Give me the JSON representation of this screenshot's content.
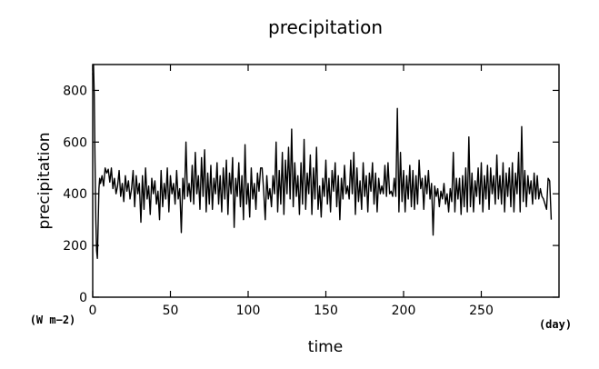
{
  "chart_data": {
    "type": "line",
    "title": "precipitation",
    "xlabel": "time",
    "ylabel": "precipitation",
    "x_unit": "(day)",
    "y_unit": "(W m−2)",
    "xlim": [
      0,
      300
    ],
    "ylim": [
      0,
      900
    ],
    "xticks": [
      0,
      50,
      100,
      150,
      200,
      250
    ],
    "yticks": [
      0,
      200,
      400,
      600,
      800
    ],
    "grid": false,
    "series": [
      {
        "values": [
          [
            0.0,
            860
          ],
          [
            0.5,
            900
          ],
          [
            1.0,
            780
          ],
          [
            1.5,
            520
          ],
          [
            2.0,
            300
          ],
          [
            2.5,
            180
          ],
          [
            3.0,
            150
          ],
          [
            3.5,
            280
          ],
          [
            4.0,
            420
          ],
          [
            4.5,
            460
          ],
          [
            5.0,
            440
          ],
          [
            6.0,
            470
          ],
          [
            7.0,
            430
          ],
          [
            8.0,
            500
          ],
          [
            9.0,
            480
          ],
          [
            10.0,
            495
          ],
          [
            11.0,
            445
          ],
          [
            12.0,
            500
          ],
          [
            13.0,
            420
          ],
          [
            14.0,
            460
          ],
          [
            15.0,
            400
          ],
          [
            16.0,
            430
          ],
          [
            17.0,
            490
          ],
          [
            18.0,
            390
          ],
          [
            19.0,
            440
          ],
          [
            20.0,
            370
          ],
          [
            21.0,
            470
          ],
          [
            22.0,
            410
          ],
          [
            23.0,
            450
          ],
          [
            24.0,
            380
          ],
          [
            25.0,
            420
          ],
          [
            26.0,
            490
          ],
          [
            27.0,
            350
          ],
          [
            28.0,
            470
          ],
          [
            29.0,
            400
          ],
          [
            30.0,
            440
          ],
          [
            31.0,
            290
          ],
          [
            32.0,
            470
          ],
          [
            33.0,
            340
          ],
          [
            34.0,
            500
          ],
          [
            35.0,
            380
          ],
          [
            36.0,
            430
          ],
          [
            37.0,
            320
          ],
          [
            38.0,
            460
          ],
          [
            39.0,
            400
          ],
          [
            40.0,
            450
          ],
          [
            41.0,
            360
          ],
          [
            42.0,
            410
          ],
          [
            43.0,
            300
          ],
          [
            44.0,
            490
          ],
          [
            45.0,
            350
          ],
          [
            46.0,
            440
          ],
          [
            47.0,
            380
          ],
          [
            48.0,
            500
          ],
          [
            49.0,
            330
          ],
          [
            50.0,
            470
          ],
          [
            51.0,
            400
          ],
          [
            52.0,
            440
          ],
          [
            53.0,
            360
          ],
          [
            54.0,
            490
          ],
          [
            55.0,
            380
          ],
          [
            56.0,
            420
          ],
          [
            57.0,
            250
          ],
          [
            58.0,
            460
          ],
          [
            59.0,
            380
          ],
          [
            60.0,
            600
          ],
          [
            61.0,
            390
          ],
          [
            62.0,
            440
          ],
          [
            63.0,
            370
          ],
          [
            64.0,
            510
          ],
          [
            65.0,
            360
          ],
          [
            66.0,
            560
          ],
          [
            67.0,
            400
          ],
          [
            68.0,
            470
          ],
          [
            69.0,
            340
          ],
          [
            70.0,
            540
          ],
          [
            71.0,
            390
          ],
          [
            72.0,
            570
          ],
          [
            73.0,
            330
          ],
          [
            74.0,
            480
          ],
          [
            75.0,
            360
          ],
          [
            76.0,
            510
          ],
          [
            77.0,
            340
          ],
          [
            78.0,
            460
          ],
          [
            79.0,
            400
          ],
          [
            80.0,
            520
          ],
          [
            81.0,
            360
          ],
          [
            82.0,
            470
          ],
          [
            83.0,
            330
          ],
          [
            84.0,
            500
          ],
          [
            85.0,
            380
          ],
          [
            86.0,
            530
          ],
          [
            87.0,
            320
          ],
          [
            88.0,
            480
          ],
          [
            89.0,
            400
          ],
          [
            90.0,
            540
          ],
          [
            91.0,
            270
          ],
          [
            92.0,
            460
          ],
          [
            93.0,
            390
          ],
          [
            94.0,
            520
          ],
          [
            95.0,
            350
          ],
          [
            96.0,
            470
          ],
          [
            97.0,
            300
          ],
          [
            98.0,
            590
          ],
          [
            99.0,
            360
          ],
          [
            100.0,
            440
          ],
          [
            101.0,
            310
          ],
          [
            102.0,
            500
          ],
          [
            103.0,
            380
          ],
          [
            104.0,
            440
          ],
          [
            105.0,
            340
          ],
          [
            106.0,
            480
          ],
          [
            107.0,
            410
          ],
          [
            108.0,
            500
          ],
          [
            109.0,
            500
          ],
          [
            110.0,
            410
          ],
          [
            111.0,
            300
          ],
          [
            112.0,
            470
          ],
          [
            113.0,
            380
          ],
          [
            114.0,
            420
          ],
          [
            115.0,
            350
          ],
          [
            116.0,
            470
          ],
          [
            117.0,
            400
          ],
          [
            118.0,
            600
          ],
          [
            119.0,
            330
          ],
          [
            120.0,
            490
          ],
          [
            121.0,
            360
          ],
          [
            122.0,
            560
          ],
          [
            123.0,
            320
          ],
          [
            124.0,
            530
          ],
          [
            125.0,
            400
          ],
          [
            126.0,
            580
          ],
          [
            127.0,
            380
          ],
          [
            128.0,
            650
          ],
          [
            129.0,
            350
          ],
          [
            130.0,
            520
          ],
          [
            131.0,
            390
          ],
          [
            132.0,
            470
          ],
          [
            133.0,
            320
          ],
          [
            134.0,
            520
          ],
          [
            135.0,
            360
          ],
          [
            136.0,
            610
          ],
          [
            137.0,
            340
          ],
          [
            138.0,
            480
          ],
          [
            139.0,
            400
          ],
          [
            140.0,
            550
          ],
          [
            141.0,
            320
          ],
          [
            142.0,
            500
          ],
          [
            143.0,
            380
          ],
          [
            144.0,
            580
          ],
          [
            145.0,
            340
          ],
          [
            146.0,
            430
          ],
          [
            147.0,
            310
          ],
          [
            148.0,
            460
          ],
          [
            149.0,
            390
          ],
          [
            150.0,
            530
          ],
          [
            151.0,
            360
          ],
          [
            152.0,
            460
          ],
          [
            153.0,
            330
          ],
          [
            154.0,
            490
          ],
          [
            155.0,
            410
          ],
          [
            156.0,
            520
          ],
          [
            157.0,
            350
          ],
          [
            158.0,
            470
          ],
          [
            159.0,
            300
          ],
          [
            160.0,
            460
          ],
          [
            161.0,
            380
          ],
          [
            162.0,
            510
          ],
          [
            163.0,
            400
          ],
          [
            164.0,
            430
          ],
          [
            165.0,
            380
          ],
          [
            166.0,
            530
          ],
          [
            167.0,
            400
          ],
          [
            168.0,
            560
          ],
          [
            169.0,
            320
          ],
          [
            170.0,
            500
          ],
          [
            171.0,
            370
          ],
          [
            172.0,
            450
          ],
          [
            173.0,
            340
          ],
          [
            174.0,
            520
          ],
          [
            175.0,
            390
          ],
          [
            176.0,
            470
          ],
          [
            177.0,
            330
          ],
          [
            178.0,
            480
          ],
          [
            179.0,
            410
          ],
          [
            180.0,
            520
          ],
          [
            181.0,
            360
          ],
          [
            182.0,
            480
          ],
          [
            183.0,
            330
          ],
          [
            184.0,
            460
          ],
          [
            185.0,
            400
          ],
          [
            186.0,
            430
          ],
          [
            187.0,
            400
          ],
          [
            188.0,
            510
          ],
          [
            189.0,
            390
          ],
          [
            190.0,
            520
          ],
          [
            191.0,
            400
          ],
          [
            192.0,
            410
          ],
          [
            193.0,
            390
          ],
          [
            194.0,
            460
          ],
          [
            195.0,
            390
          ],
          [
            196.0,
            730
          ],
          [
            197.0,
            330
          ],
          [
            198.0,
            560
          ],
          [
            199.0,
            370
          ],
          [
            200.0,
            490
          ],
          [
            201.0,
            330
          ],
          [
            202.0,
            470
          ],
          [
            203.0,
            380
          ],
          [
            204.0,
            510
          ],
          [
            205.0,
            350
          ],
          [
            206.0,
            490
          ],
          [
            207.0,
            340
          ],
          [
            208.0,
            470
          ],
          [
            209.0,
            360
          ],
          [
            210.0,
            530
          ],
          [
            211.0,
            420
          ],
          [
            212.0,
            460
          ],
          [
            213.0,
            340
          ],
          [
            214.0,
            470
          ],
          [
            215.0,
            400
          ],
          [
            216.0,
            490
          ],
          [
            217.0,
            380
          ],
          [
            218.0,
            440
          ],
          [
            219.0,
            240
          ],
          [
            220.0,
            430
          ],
          [
            221.0,
            390
          ],
          [
            222.0,
            420
          ],
          [
            223.0,
            350
          ],
          [
            224.0,
            410
          ],
          [
            225.0,
            380
          ],
          [
            226.0,
            440
          ],
          [
            227.0,
            360
          ],
          [
            228.0,
            400
          ],
          [
            229.0,
            330
          ],
          [
            230.0,
            420
          ],
          [
            231.0,
            370
          ],
          [
            232.0,
            560
          ],
          [
            233.0,
            330
          ],
          [
            234.0,
            460
          ],
          [
            235.0,
            380
          ],
          [
            236.0,
            460
          ],
          [
            237.0,
            320
          ],
          [
            238.0,
            470
          ],
          [
            239.0,
            350
          ],
          [
            240.0,
            500
          ],
          [
            241.0,
            330
          ],
          [
            242.0,
            620
          ],
          [
            243.0,
            350
          ],
          [
            244.0,
            480
          ],
          [
            245.0,
            330
          ],
          [
            246.0,
            450
          ],
          [
            247.0,
            390
          ],
          [
            248.0,
            500
          ],
          [
            249.0,
            360
          ],
          [
            250.0,
            520
          ],
          [
            251.0,
            330
          ],
          [
            252.0,
            470
          ],
          [
            253.0,
            380
          ],
          [
            254.0,
            510
          ],
          [
            255.0,
            340
          ],
          [
            256.0,
            500
          ],
          [
            257.0,
            400
          ],
          [
            258.0,
            470
          ],
          [
            259.0,
            360
          ],
          [
            260.0,
            550
          ],
          [
            261.0,
            380
          ],
          [
            262.0,
            470
          ],
          [
            263.0,
            360
          ],
          [
            264.0,
            520
          ],
          [
            265.0,
            330
          ],
          [
            266.0,
            480
          ],
          [
            267.0,
            390
          ],
          [
            268.0,
            500
          ],
          [
            269.0,
            350
          ],
          [
            270.0,
            520
          ],
          [
            271.0,
            330
          ],
          [
            272.0,
            480
          ],
          [
            273.0,
            400
          ],
          [
            274.0,
            560
          ],
          [
            275.0,
            330
          ],
          [
            276.0,
            660
          ],
          [
            277.0,
            370
          ],
          [
            278.0,
            490
          ],
          [
            279.0,
            350
          ],
          [
            280.0,
            470
          ],
          [
            281.0,
            400
          ],
          [
            282.0,
            450
          ],
          [
            283.0,
            360
          ],
          [
            284.0,
            480
          ],
          [
            285.0,
            380
          ],
          [
            286.0,
            470
          ],
          [
            287.0,
            380
          ],
          [
            288.0,
            420
          ],
          [
            289.0,
            390
          ],
          [
            290.0,
            380
          ],
          [
            291.0,
            360
          ],
          [
            292.0,
            340
          ],
          [
            293.0,
            460
          ],
          [
            294.0,
            450
          ],
          [
            295.0,
            300
          ]
        ]
      }
    ]
  }
}
